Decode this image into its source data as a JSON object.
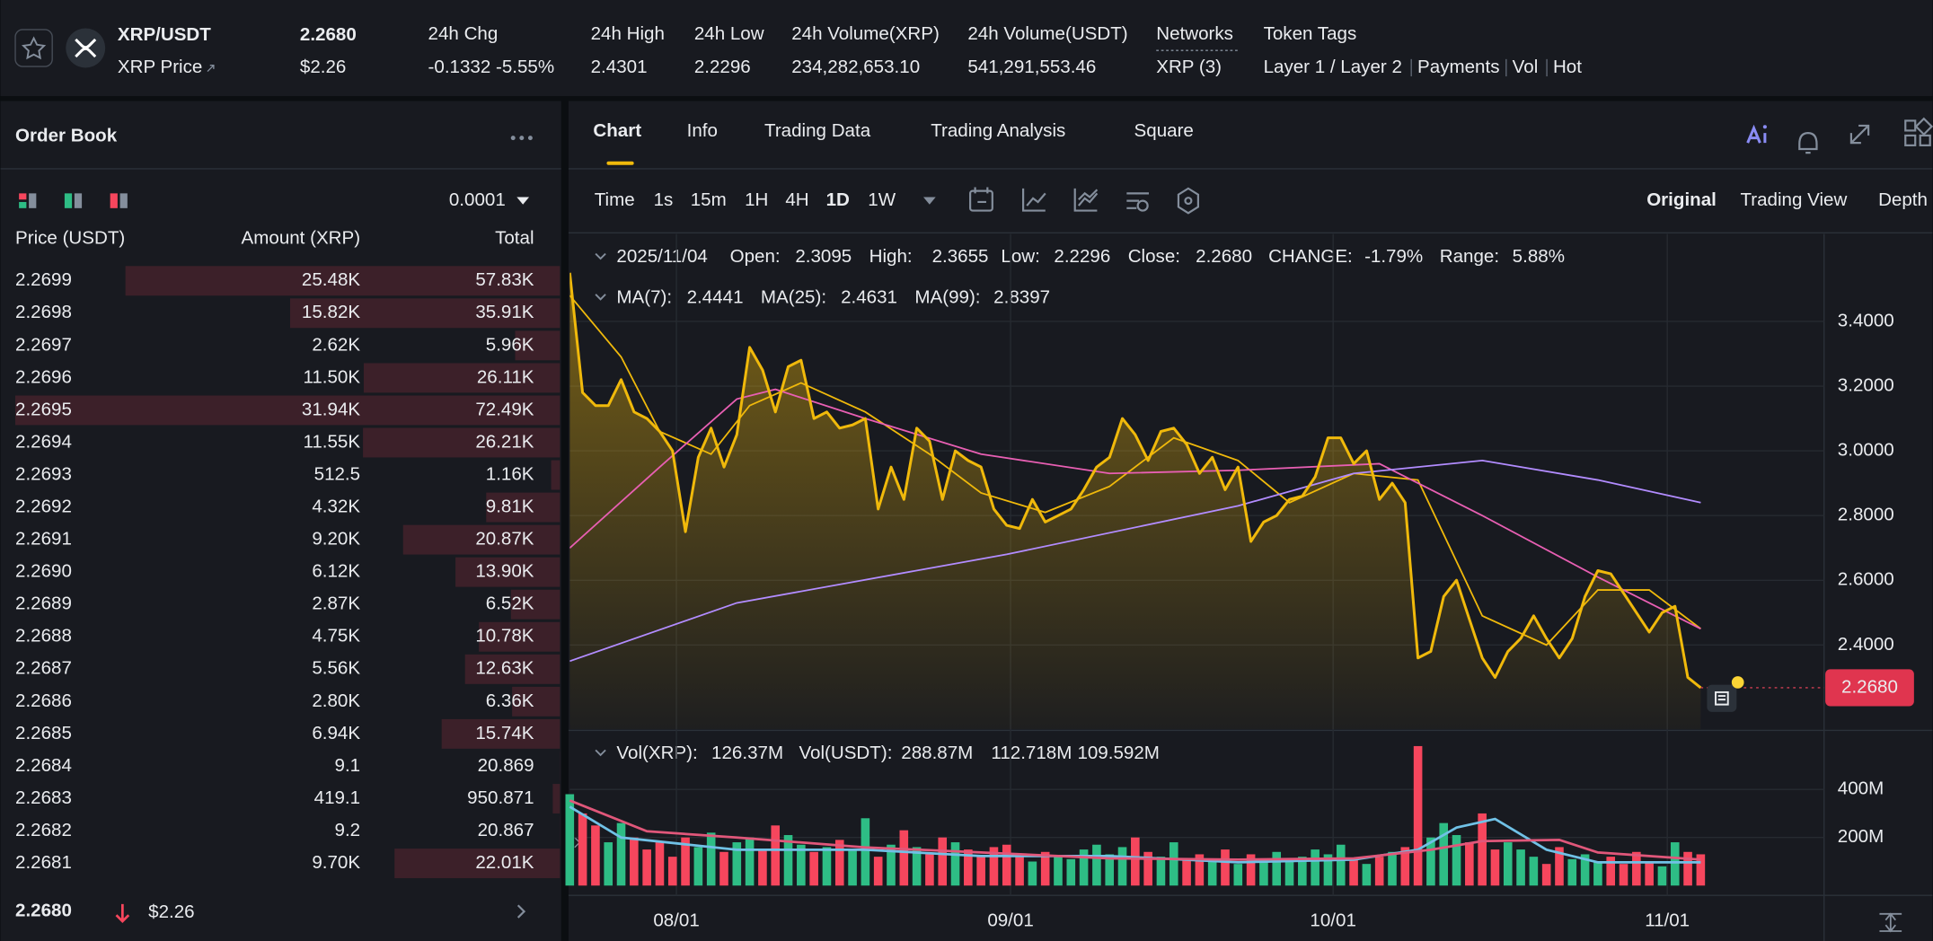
{
  "header": {
    "pair": "XRP/USDT",
    "subtitle": "XRP Price",
    "last_price": "2.2680",
    "last_price_usd": "$2.26",
    "stats": [
      {
        "label": "24h Chg",
        "value": "-0.1332 -5.55%"
      },
      {
        "label": "24h High",
        "value": "2.4301"
      },
      {
        "label": "24h Low",
        "value": "2.2296"
      },
      {
        "label": "24h Volume(XRP)",
        "value": "234,282,653.10"
      },
      {
        "label": "24h Volume(USDT)",
        "value": "541,291,553.46"
      },
      {
        "label": "Networks",
        "value": "XRP (3)"
      }
    ],
    "token_tags_label": "Token Tags",
    "token_tags": [
      "Layer 1 / Layer 2",
      "Payments",
      "Vol",
      "Hot"
    ]
  },
  "order_book": {
    "title": "Order Book",
    "precision": "0.0001",
    "columns": [
      "Price (USDT)",
      "Amount (XRP)",
      "Total"
    ],
    "rows": [
      {
        "price": "2.2699",
        "amount": "25.48K",
        "total": {
          "value": 57830,
          "label": "57.83K"
        }
      },
      {
        "price": "2.2698",
        "amount": "15.82K",
        "total": {
          "value": 35910,
          "label": "35.91K"
        }
      },
      {
        "price": "2.2697",
        "amount": "2.62K",
        "total": {
          "value": 5960,
          "label": "5.96K"
        }
      },
      {
        "price": "2.2696",
        "amount": "11.50K",
        "total": {
          "value": 26110,
          "label": "26.11K"
        }
      },
      {
        "price": "2.2695",
        "amount": "31.94K",
        "total": {
          "value": 72490,
          "label": "72.49K"
        }
      },
      {
        "price": "2.2694",
        "amount": "11.55K",
        "total": {
          "value": 26210,
          "label": "26.21K"
        }
      },
      {
        "price": "2.2693",
        "amount": "512.5",
        "total": {
          "value": 1160,
          "label": "1.16K"
        }
      },
      {
        "price": "2.2692",
        "amount": "4.32K",
        "total": {
          "value": 9810,
          "label": "9.81K"
        }
      },
      {
        "price": "2.2691",
        "amount": "9.20K",
        "total": {
          "value": 20870,
          "label": "20.87K"
        }
      },
      {
        "price": "2.2690",
        "amount": "6.12K",
        "total": {
          "value": 13900,
          "label": "13.90K"
        }
      },
      {
        "price": "2.2689",
        "amount": "2.87K",
        "total": {
          "value": 6520,
          "label": "6.52K"
        }
      },
      {
        "price": "2.2688",
        "amount": "4.75K",
        "total": {
          "value": 10780,
          "label": "10.78K"
        }
      },
      {
        "price": "2.2687",
        "amount": "5.56K",
        "total": {
          "value": 12630,
          "label": "12.63K"
        }
      },
      {
        "price": "2.2686",
        "amount": "2.80K",
        "total": {
          "value": 6360,
          "label": "6.36K"
        }
      },
      {
        "price": "2.2685",
        "amount": "6.94K",
        "total": {
          "value": 15740,
          "label": "15.74K"
        }
      },
      {
        "price": "2.2684",
        "amount": "9.1",
        "total": 20.869
      },
      {
        "price": "2.2683",
        "amount": "419.1",
        "total": 950.871
      },
      {
        "price": "2.2682",
        "amount": "9.2",
        "total": 20.867
      },
      {
        "price": "2.2681",
        "amount": "9.70K",
        "total": {
          "value": 22010,
          "label": "22.01K"
        }
      }
    ],
    "last_price": "2.2680",
    "last_price_usd": "$2.26"
  },
  "chart_tabs": [
    "Chart",
    "Info",
    "Trading Data",
    "Trading Analysis",
    "Square"
  ],
  "intervals": [
    "Time",
    "1s",
    "15m",
    "1H",
    "4H",
    "1D",
    "1W"
  ],
  "views": [
    "Original",
    "Trading View",
    "Depth"
  ],
  "ohlc": {
    "date": "2025/11/04",
    "items": [
      {
        "label": "Open:",
        "value": "2.3095"
      },
      {
        "label": "High:",
        "value": "2.3655"
      },
      {
        "label": "Low:",
        "value": "2.2296"
      },
      {
        "label": "Close:",
        "value": "2.2680"
      },
      {
        "label": "CHANGE:",
        "value": "-1.79%"
      },
      {
        "label": "Range:",
        "value": "5.88%"
      }
    ]
  },
  "ma_legend": [
    {
      "label": "MA(7):",
      "value": "2.4441",
      "color": "#f0b90b"
    },
    {
      "label": "MA(25):",
      "value": "2.4631",
      "color": "#e85fb3"
    },
    {
      "label": "MA(99):",
      "value": "2.8397",
      "color": "#b28cff"
    }
  ],
  "vol_legend": [
    {
      "label": "Vol(XRP):",
      "value": "126.37M",
      "color": "#eaecef"
    },
    {
      "label": "Vol(USDT):",
      "value": "288.87M",
      "color": "#eaecef"
    },
    {
      "value": "112.718M",
      "color": "#70c1e6"
    },
    {
      "value": "109.592M",
      "color": "#e0577a"
    }
  ],
  "chart_data": [
    {
      "type": "area",
      "color": "#f0b90b",
      "values": [
        3.55,
        3.18,
        3.14,
        3.14,
        3.22,
        3.12,
        3.1,
        3.06,
        3.0,
        2.75,
        2.98,
        3.07,
        2.95,
        3.05,
        3.32,
        3.25,
        3.12,
        3.26,
        3.28,
        3.1,
        3.12,
        3.07,
        3.08,
        3.1,
        2.82,
        2.95,
        2.85,
        3.07,
        3.03,
        2.85,
        3.0,
        2.97,
        2.95,
        2.82,
        2.77,
        2.76,
        2.85,
        2.78,
        2.8,
        2.82,
        2.88,
        2.95,
        2.98,
        3.1,
        3.05,
        2.97,
        3.06,
        3.07,
        3.02,
        2.93,
        2.98,
        2.88,
        2.95,
        2.72,
        2.78,
        2.8,
        2.85,
        2.86,
        2.92,
        3.04,
        3.04,
        2.96,
        3.0,
        2.85,
        2.9,
        2.84,
        2.36,
        2.38,
        2.55,
        2.6,
        2.48,
        2.36,
        2.3,
        2.38,
        2.42,
        2.49,
        2.42,
        2.36,
        2.42,
        2.55,
        2.63,
        2.62,
        2.56,
        2.5,
        2.44,
        2.5,
        2.52,
        2.3,
        2.268
      ],
      "xlim": [
        0,
        97.6
      ],
      "xticks": [
        {
          "value": 8.3,
          "label": "08/01"
        },
        {
          "value": 34.3,
          "label": "09/01"
        },
        {
          "value": 59.4,
          "label": "10/01"
        },
        {
          "value": 85.4,
          "label": "11/01"
        }
      ],
      "ylim": [
        2.14,
        3.67
      ],
      "yticks": [
        {
          "value": 2.4,
          "label": "2.4000"
        },
        {
          "value": 2.6,
          "label": "2.6000"
        },
        {
          "value": 2.8,
          "label": "2.8000"
        },
        {
          "value": 3.0,
          "label": "3.0000"
        },
        {
          "value": 3.2,
          "label": "3.2000"
        },
        {
          "value": 3.4,
          "label": "3.4000"
        }
      ],
      "ma_lines": [
        {
          "color": "#f0b90b",
          "x": [
            0,
            4,
            7,
            11,
            14,
            18,
            23,
            28,
            32,
            37,
            42,
            47,
            52,
            56,
            61,
            66,
            71,
            76,
            80,
            84,
            88
          ],
          "values": [
            3.48,
            3.29,
            3.06,
            2.99,
            3.14,
            3.21,
            3.12,
            2.99,
            2.87,
            2.81,
            2.89,
            3.04,
            2.97,
            2.84,
            2.93,
            2.91,
            2.49,
            2.4,
            2.57,
            2.57,
            2.45
          ]
        },
        {
          "color": "#e85fb3",
          "x": [
            0,
            7,
            13,
            16,
            23,
            32,
            42,
            52,
            63,
            71,
            80,
            88
          ],
          "values": [
            2.7,
            2.95,
            3.16,
            3.19,
            3.1,
            2.99,
            2.93,
            2.94,
            2.96,
            2.8,
            2.61,
            2.45
          ]
        },
        {
          "color": "#b28cff",
          "x": [
            0,
            13,
            34,
            52,
            61,
            71,
            80,
            88
          ],
          "values": [
            2.35,
            2.53,
            2.68,
            2.83,
            2.93,
            2.97,
            2.91,
            2.84
          ]
        }
      ]
    },
    {
      "type": "bar",
      "up_color": "#2ebd85",
      "down_color": "#f6465d",
      "values": [
        380,
        300,
        250,
        180,
        260,
        200,
        150,
        180,
        120,
        200,
        160,
        220,
        140,
        180,
        200,
        150,
        250,
        210,
        170,
        140,
        160,
        190,
        150,
        280,
        120,
        170,
        230,
        160,
        130,
        200,
        180,
        150,
        120,
        160,
        170,
        130,
        100,
        140,
        120,
        110,
        150,
        170,
        130,
        160,
        200,
        140,
        120,
        180,
        110,
        130,
        100,
        150,
        90,
        130,
        110,
        140,
        100,
        120,
        150,
        130,
        170,
        110,
        90,
        120,
        140,
        160,
        580,
        200,
        260,
        210,
        180,
        300,
        150,
        180,
        150,
        120,
        90,
        160,
        110,
        130,
        100,
        120,
        90,
        140,
        100,
        80,
        180,
        140,
        130
      ],
      "xlim": [
        0,
        97.6
      ],
      "ylim": [
        0,
        630
      ],
      "yticks": [
        {
          "value": 200,
          "label": "200M"
        },
        {
          "value": 400,
          "label": "400M"
        }
      ],
      "lines": [
        {
          "color": "#70c1e6",
          "x": [
            0,
            4,
            13,
            23,
            32,
            42,
            52,
            61,
            66,
            69,
            72,
            76,
            80,
            88
          ],
          "values": [
            328,
            200,
            149,
            149,
            123,
            123,
            97,
            108,
            149,
            241,
            277,
            149,
            97,
            97
          ]
        },
        {
          "color": "#e0577a",
          "x": [
            0,
            6,
            13,
            23,
            32,
            42,
            52,
            61,
            67,
            71,
            77,
            80,
            88
          ],
          "values": [
            354,
            226,
            200,
            159,
            138,
            113,
            108,
            113,
            149,
            185,
            190,
            138,
            108
          ]
        }
      ]
    }
  ]
}
